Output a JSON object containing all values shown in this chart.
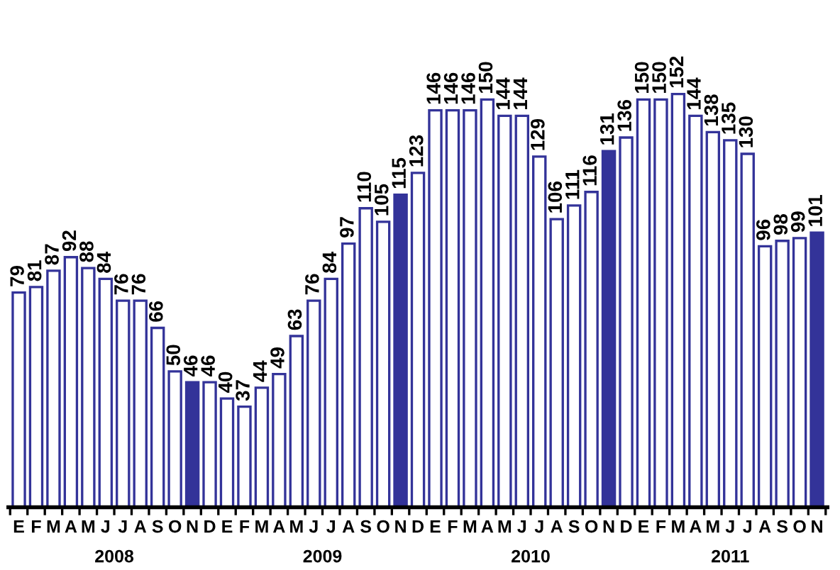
{
  "chart_data": {
    "type": "bar",
    "categories": [
      "E",
      "F",
      "M",
      "A",
      "M",
      "J",
      "J",
      "A",
      "S",
      "O",
      "N",
      "D",
      "E",
      "F",
      "M",
      "A",
      "M",
      "J",
      "J",
      "A",
      "S",
      "O",
      "N",
      "D",
      "E",
      "F",
      "M",
      "A",
      "M",
      "J",
      "J",
      "A",
      "S",
      "O",
      "N",
      "D",
      "E",
      "F",
      "M",
      "A",
      "M",
      "J",
      "J",
      "A",
      "S",
      "O",
      "N"
    ],
    "values": [
      79,
      81,
      87,
      92,
      88,
      84,
      76,
      76,
      66,
      50,
      46,
      46,
      40,
      37,
      44,
      49,
      63,
      76,
      84,
      97,
      110,
      105,
      115,
      123,
      146,
      146,
      146,
      150,
      144,
      144,
      129,
      106,
      111,
      116,
      131,
      136,
      150,
      150,
      152,
      144,
      138,
      135,
      130,
      96,
      98,
      99,
      101
    ],
    "color": "#333399",
    "colors": [
      "#ffffff",
      "#ffffff",
      "#ffffff",
      "#ffffff",
      "#ffffff",
      "#ffffff",
      "#ffffff",
      "#ffffff",
      "#ffffff",
      "#ffffff",
      "#333399",
      "#ffffff",
      "#ffffff",
      "#ffffff",
      "#ffffff",
      "#ffffff",
      "#ffffff",
      "#ffffff",
      "#ffffff",
      "#ffffff",
      "#ffffff",
      "#ffffff",
      "#333399",
      "#ffffff",
      "#ffffff",
      "#ffffff",
      "#ffffff",
      "#ffffff",
      "#ffffff",
      "#ffffff",
      "#ffffff",
      "#ffffff",
      "#ffffff",
      "#ffffff",
      "#333399",
      "#ffffff",
      "#ffffff",
      "#ffffff",
      "#ffffff",
      "#ffffff",
      "#ffffff",
      "#ffffff",
      "#ffffff",
      "#ffffff",
      "#ffffff",
      "#ffffff",
      "#333399"
    ],
    "data_labels": true,
    "grid": false,
    "legend": false,
    "annotations": [
      "2008",
      "2009",
      "2010",
      "2011"
    ]
  }
}
